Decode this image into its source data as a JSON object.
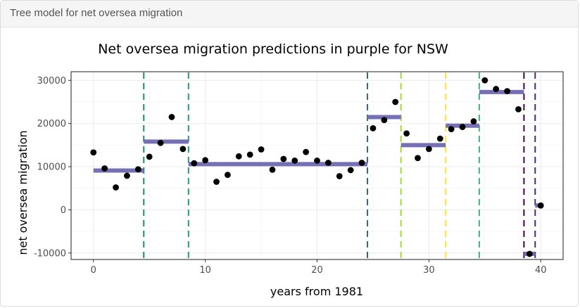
{
  "card": {
    "header_title": "Tree model for net oversea migration"
  },
  "chart_data": {
    "type": "scatter",
    "title": "Net oversea migration predictions in purple for NSW",
    "xlabel": "years from 1981",
    "ylabel": "net oversea migration",
    "xlim": [
      -2,
      42
    ],
    "ylim": [
      -11500,
      32000
    ],
    "xticks": [
      0,
      10,
      20,
      30,
      40
    ],
    "yticks": [
      -10000,
      0,
      10000,
      20000,
      30000
    ],
    "xtick_labels": [
      "0",
      "10",
      "20",
      "30",
      "40"
    ],
    "ytick_labels": [
      "-10000",
      "0",
      "10000",
      "20000",
      "30000"
    ],
    "grid": true,
    "points": {
      "x": [
        0,
        1,
        2,
        3,
        4,
        5,
        6,
        7,
        8,
        9,
        10,
        11,
        12,
        13,
        14,
        15,
        16,
        17,
        18,
        19,
        20,
        21,
        22,
        23,
        24,
        25,
        26,
        27,
        28,
        29,
        30,
        31,
        32,
        33,
        34,
        35,
        36,
        37,
        38,
        39,
        40
      ],
      "y": [
        13300,
        9600,
        5200,
        7900,
        9400,
        12300,
        15500,
        21500,
        14100,
        10800,
        11500,
        6500,
        8100,
        12400,
        12800,
        14000,
        9300,
        11800,
        11400,
        13400,
        11400,
        10900,
        7800,
        9200,
        10900,
        18900,
        20800,
        25000,
        17700,
        12000,
        14100,
        16500,
        18700,
        19200,
        20500,
        30000,
        28000,
        27500,
        23300,
        -10200,
        1000
      ],
      "color": "#000000"
    },
    "predictions": {
      "color": "#7570b3",
      "segments": [
        {
          "x_start": 0,
          "x_end": 4.5,
          "y": 9100
        },
        {
          "x_start": 4.5,
          "x_end": 8.5,
          "y": 15800
        },
        {
          "x_start": 8.5,
          "x_end": 24.5,
          "y": 10600
        },
        {
          "x_start": 24.5,
          "x_end": 27.5,
          "y": 21500
        },
        {
          "x_start": 27.5,
          "x_end": 31.5,
          "y": 15000
        },
        {
          "x_start": 31.5,
          "x_end": 34.5,
          "y": 19500
        },
        {
          "x_start": 34.5,
          "x_end": 38.5,
          "y": 27300
        },
        {
          "x_start": 38.5,
          "x_end": 39.5,
          "y": -10200
        },
        {
          "x_start": 39.5,
          "x_end": 40,
          "y": 1000
        }
      ]
    },
    "splits": [
      {
        "x": 4.5,
        "color": "#1f8a78"
      },
      {
        "x": 8.5,
        "color": "#1f9e89"
      },
      {
        "x": 24.5,
        "color": "#31688e"
      },
      {
        "x": 27.5,
        "color": "#9fda3a"
      },
      {
        "x": 31.5,
        "color": "#fde725"
      },
      {
        "x": 34.5,
        "color": "#35b779"
      },
      {
        "x": 38.5,
        "color": "#440154"
      },
      {
        "x": 39.5,
        "color": "#482878"
      }
    ]
  }
}
